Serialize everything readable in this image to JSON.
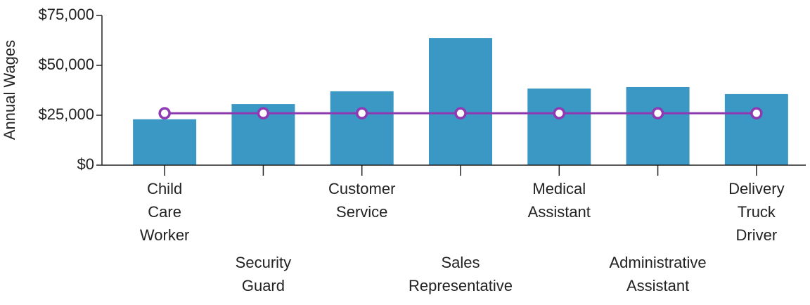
{
  "chart_data": {
    "type": "bar",
    "y_label": "Annual Wages",
    "categories": [
      "Child Care Worker",
      "Security Guard",
      "Customer Service",
      "Sales Representative",
      "Medical Assistant",
      "Administrative Assistant",
      "Delivery Truck Driver"
    ],
    "series": [
      {
        "type": "bar",
        "color": "#3b97c4",
        "values": [
          23000,
          30600,
          37000,
          63700,
          38400,
          39100,
          35600
        ]
      },
      {
        "type": "line",
        "color": "#8e3ab3",
        "values": [
          26000,
          26000,
          26000,
          26000,
          26000,
          26000,
          26000
        ]
      }
    ],
    "ylim": [
      0,
      75000
    ],
    "yticks": [
      {
        "value": 0,
        "label": "$0"
      },
      {
        "value": 25000,
        "label": "$25,000"
      },
      {
        "value": 50000,
        "label": "$50,000"
      },
      {
        "value": 75000,
        "label": "$75,000"
      }
    ]
  }
}
